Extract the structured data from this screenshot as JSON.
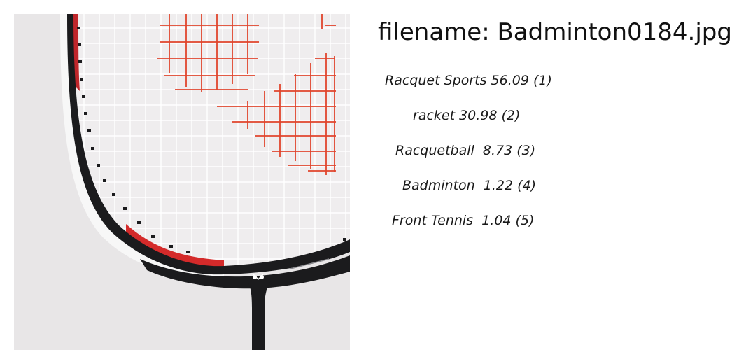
{
  "filename": {
    "label": "filename: Badminton0184.jpg"
  },
  "predictions": [
    {
      "text": "Racquet Sports 56.09 (1)"
    },
    {
      "text": "racket 30.98 (2)"
    },
    {
      "text": "Racquetball  8.73 (3)"
    },
    {
      "text": "Badminton  1.22 (4)"
    },
    {
      "text": "Front Tennis  1.04 (5)"
    }
  ],
  "image": {
    "subject": "badminton racket head close-up",
    "background_color": "#e8e6e7",
    "frame_color": "#1b1b1d",
    "accent_color": "#d42a2a",
    "string_logo_color": "#e0442c"
  }
}
